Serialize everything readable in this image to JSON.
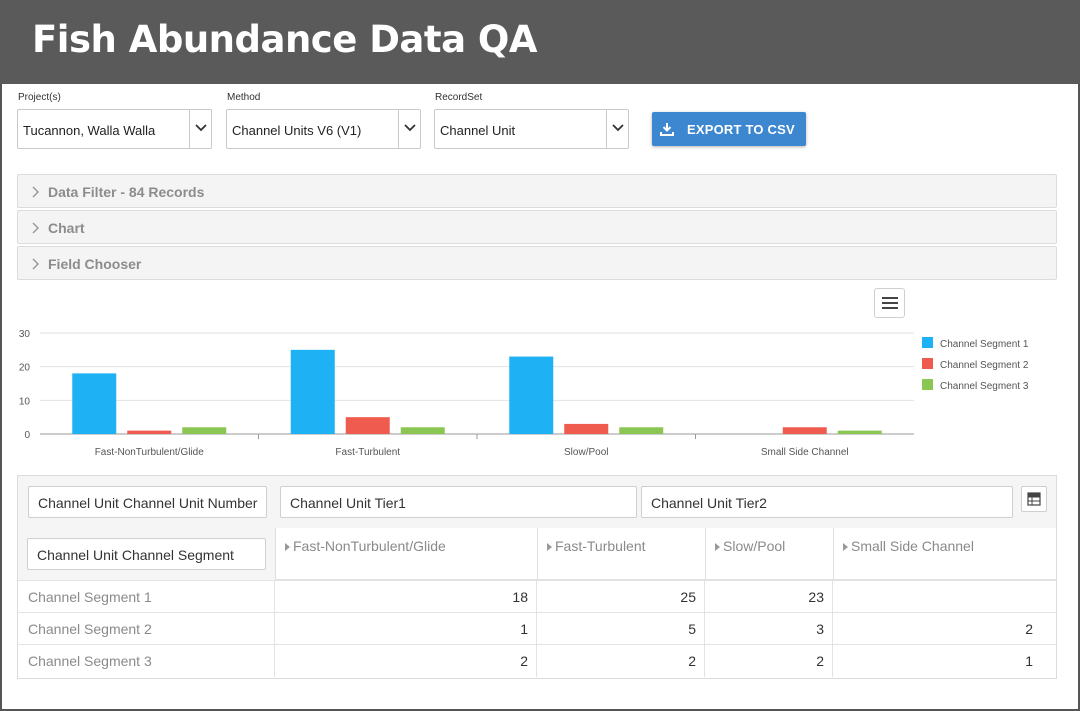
{
  "app": {
    "title": "Fish Abundance Data QA"
  },
  "selectors": {
    "project": {
      "label": "Project(s)",
      "value": "Tucannon, Walla Walla"
    },
    "method": {
      "label": "Method",
      "value": "Channel Units V6 (V1)"
    },
    "recordset": {
      "label": "RecordSet",
      "value": "Channel Unit"
    }
  },
  "export": {
    "label": "EXPORT TO CSV",
    "icon": "download-icon"
  },
  "panels": [
    {
      "label": "Data Filter - 84 Records"
    },
    {
      "label": "Chart"
    },
    {
      "label": "Field Chooser"
    }
  ],
  "chart_data": {
    "type": "bar",
    "categories": [
      "Fast-NonTurbulent/Glide",
      "Fast-Turbulent",
      "Slow/Pool",
      "Small Side Channel"
    ],
    "series": [
      {
        "name": "Channel Segment 1",
        "color": "#1eb2f5",
        "values": [
          18,
          25,
          23,
          0
        ]
      },
      {
        "name": "Channel Segment 2",
        "color": "#f05b4f",
        "values": [
          1,
          5,
          3,
          2
        ]
      },
      {
        "name": "Channel Segment 3",
        "color": "#8bc652",
        "values": [
          2,
          2,
          2,
          1
        ]
      }
    ],
    "ylim": [
      0,
      30
    ],
    "yticks": [
      0,
      10,
      20,
      30
    ],
    "grid": true,
    "legend": "right",
    "xlabel": "",
    "ylabel": ""
  },
  "pivot": {
    "data_fields": [
      "Channel Unit Channel Unit Number",
      "Channel Unit Tier1",
      "Channel Unit Tier2"
    ],
    "row_field": "Channel Unit Channel Segment",
    "columns": [
      "Fast-NonTurbulent/Glide",
      "Fast-Turbulent",
      "Slow/Pool",
      "Small Side Channel"
    ],
    "rows": [
      {
        "label": "Channel Segment 1",
        "values": [
          "18",
          "25",
          "23",
          ""
        ]
      },
      {
        "label": "Channel Segment 2",
        "values": [
          "1",
          "5",
          "3",
          "2"
        ]
      },
      {
        "label": "Channel Segment 3",
        "values": [
          "2",
          "2",
          "2",
          "1"
        ]
      }
    ]
  }
}
